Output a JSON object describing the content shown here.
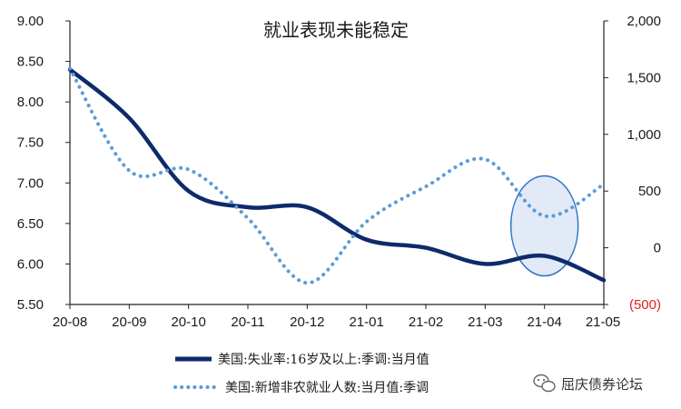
{
  "chart_data": {
    "type": "line",
    "title": "就业表现未能稳定",
    "categories": [
      "20-08",
      "20-09",
      "20-10",
      "20-11",
      "20-12",
      "21-01",
      "21-02",
      "21-03",
      "21-04",
      "21-05"
    ],
    "left_axis": {
      "ticks": [
        "9.00",
        "8.50",
        "8.00",
        "7.50",
        "7.00",
        "6.50",
        "6.00",
        "5.50"
      ],
      "ylim": [
        5.5,
        9.0
      ]
    },
    "right_axis": {
      "ticks": [
        "2,000",
        "1,500",
        "1,000",
        "500",
        "0",
        "(500)"
      ],
      "ylim": [
        -500,
        2000
      ],
      "negative_color": "#e02020"
    },
    "series": [
      {
        "name": "美国:失业率:16岁及以上:季调:当月值",
        "axis": "left",
        "style": "solid",
        "color": "#0d2a6b",
        "values": [
          8.4,
          7.8,
          6.9,
          6.7,
          6.7,
          6.3,
          6.2,
          6.0,
          6.1,
          5.8
        ]
      },
      {
        "name": "美国:新增非农就业人数:当月值:季调",
        "axis": "right",
        "style": "dotted",
        "color": "#5b9bd5",
        "values": [
          1580,
          680,
          690,
          260,
          -310,
          230,
          540,
          780,
          280,
          560
        ]
      }
    ],
    "highlight": {
      "shape": "ellipse",
      "category": "21-04",
      "fill": "#dce6f4",
      "stroke": "#2e74c2"
    },
    "legend_position": "bottom",
    "grid": false
  },
  "watermark": {
    "icon": "wechat-icon",
    "text": "屈庆债券论坛"
  }
}
